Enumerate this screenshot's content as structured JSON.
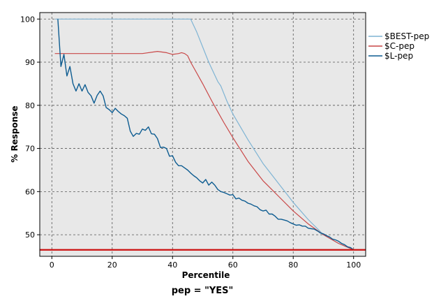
{
  "chart_data": {
    "type": "line",
    "title": "",
    "xlabel": "Percentile",
    "ylabel": "% Response",
    "caption": "pep = \"YES\"",
    "xlim": [
      -4,
      104
    ],
    "ylim": [
      45,
      101.5
    ],
    "xticks": [
      0,
      20,
      40,
      60,
      80,
      100
    ],
    "yticks": [
      50,
      60,
      70,
      80,
      90,
      100
    ],
    "grid": true,
    "legend_position": "top-right",
    "baseline": {
      "value": 46.5,
      "color": "#cc1111"
    },
    "series": [
      {
        "name": "$BEST-pep",
        "color": "#7fb4d4",
        "x": [
          1,
          45,
          46,
          48,
          50,
          52,
          54,
          55,
          56,
          58,
          60,
          65,
          70,
          75,
          80,
          85,
          90,
          95,
          100
        ],
        "y": [
          100,
          100,
          100,
          97,
          93.5,
          90,
          87,
          85.5,
          84.5,
          81,
          78,
          72,
          66.5,
          62,
          57.5,
          53.5,
          50,
          48,
          46.5
        ]
      },
      {
        "name": "$C-pep",
        "color": "#c94747",
        "x": [
          1,
          20,
          30,
          35,
          38,
          40,
          42,
          43,
          44,
          45,
          46,
          48,
          50,
          53,
          55,
          57,
          60,
          65,
          70,
          75,
          80,
          85,
          90,
          95,
          100
        ],
        "y": [
          92,
          92,
          92,
          92.5,
          92.2,
          91.8,
          92,
          92.2,
          92,
          91.5,
          90,
          87.5,
          85,
          81,
          78.5,
          76,
          72.5,
          67,
          62.5,
          59,
          55.5,
          52.5,
          50,
          48,
          46.5
        ]
      },
      {
        "name": "$L-pep",
        "color": "#0d5c91",
        "x": [
          2,
          3,
          4,
          5,
          6,
          7,
          8,
          9,
          10,
          11,
          12,
          13,
          14,
          15,
          16,
          17,
          18,
          19,
          20,
          21,
          22,
          23,
          24,
          25,
          26,
          27,
          28,
          29,
          30,
          31,
          32,
          33,
          34,
          35,
          36,
          37,
          38,
          39,
          40,
          41,
          42,
          43,
          44,
          45,
          46,
          47,
          48,
          49,
          50,
          51,
          52,
          53,
          54,
          55,
          56,
          57,
          58,
          59,
          60,
          61,
          62,
          63,
          64,
          65,
          66,
          67,
          68,
          69,
          70,
          71,
          72,
          73,
          74,
          75,
          76,
          77,
          78,
          79,
          80,
          81,
          82,
          83,
          84,
          85,
          86,
          87,
          88,
          89,
          90,
          91,
          92,
          93,
          94,
          95,
          96,
          97,
          98,
          99,
          100
        ],
        "y": [
          100,
          89,
          91.8,
          86.8,
          89,
          85,
          83.3,
          85,
          83.3,
          84.8,
          83,
          82.2,
          80.5,
          82.3,
          83.3,
          82.2,
          79.5,
          79,
          78.3,
          79.3,
          78.6,
          78,
          77.6,
          77,
          74,
          72.8,
          73.5,
          73.3,
          74.5,
          74.2,
          75,
          73.4,
          73.3,
          72.3,
          70.2,
          70.3,
          70,
          68.2,
          68.3,
          66.8,
          66,
          66,
          65.5,
          65,
          64.3,
          63.7,
          63.2,
          62.5,
          62,
          62.8,
          61.5,
          62.2,
          61.5,
          60.5,
          60,
          59.8,
          59.5,
          59.2,
          59.3,
          58.3,
          58.5,
          58,
          57.8,
          57.3,
          57.1,
          56.7,
          56.5,
          55.8,
          55.5,
          55.7,
          54.8,
          54.8,
          54.3,
          53.6,
          53.6,
          53.4,
          53.2,
          52.8,
          52.5,
          52.2,
          52.3,
          52,
          52,
          51.5,
          51.4,
          51.3,
          50.9,
          50.4,
          50.2,
          49.8,
          49.5,
          49,
          48.8,
          48.5,
          48,
          47.7,
          47.2,
          47,
          46.5
        ]
      }
    ]
  }
}
